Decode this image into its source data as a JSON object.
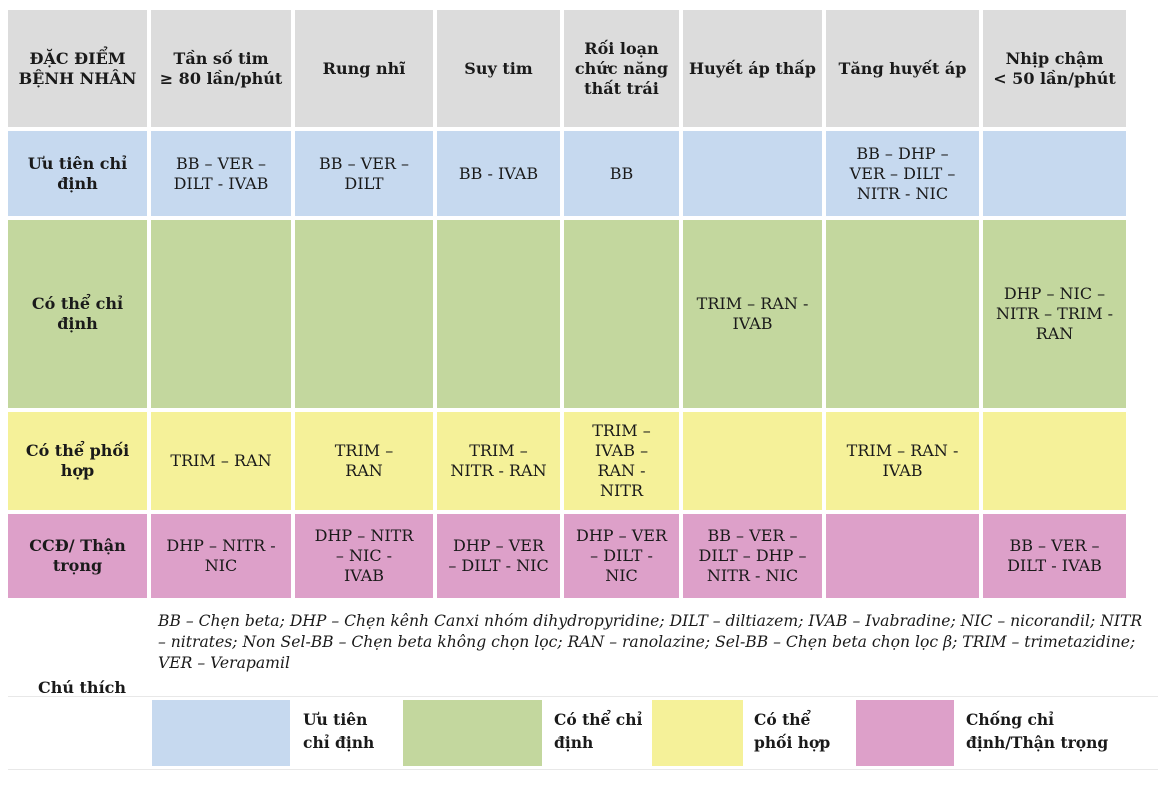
{
  "colors": {
    "header": "#dcdcdc",
    "priority": "#c6d9ef",
    "may_indicate": "#c3d79e",
    "may_combine": "#f5f199",
    "contraindicated": "#dda0c9"
  },
  "table": {
    "headers": [
      "ĐẶC ĐIỂM\nBỆNH NHÂN",
      "Tần số tim\n≥ 80 lần/phút",
      "Rung nhĩ",
      "Suy tim",
      "Rối loạn\nchức năng\nthất trái",
      "Huyết áp thấp",
      "Tăng huyết áp",
      "Nhịp chậm\n< 50 lần/phút"
    ],
    "rows": [
      {
        "label": "Ưu tiên chỉ\nđịnh",
        "cells": [
          "BB – VER –\nDILT - IVAB",
          "BB – VER –\nDILT",
          "BB - IVAB",
          "BB",
          "",
          "BB – DHP –\nVER – DILT –\nNITR - NIC",
          ""
        ]
      },
      {
        "label": "Có thể chỉ\nđịnh",
        "cells": [
          "",
          "",
          "",
          "",
          "TRIM – RAN -\nIVAB",
          "",
          "DHP – NIC –\nNITR – TRIM -\nRAN"
        ]
      },
      {
        "label": "Có thể phối\nhợp",
        "cells": [
          "TRIM – RAN",
          "TRIM –\nRAN",
          "TRIM –\nNITR - RAN",
          "TRIM –\nIVAB –\nRAN -\nNITR",
          "",
          "TRIM – RAN -\nIVAB",
          ""
        ]
      },
      {
        "label": "CCĐ/ Thận\ntrọng",
        "cells": [
          "DHP – NITR -\nNIC",
          "DHP – NITR\n– NIC -\nIVAB",
          "DHP – VER\n– DILT - NIC",
          "DHP – VER\n– DILT -\nNIC",
          "BB – VER –\nDILT – DHP –\nNITR - NIC",
          "",
          "BB – VER –\nDILT - IVAB"
        ]
      }
    ]
  },
  "notes": {
    "label": "Chú thích",
    "text": "BB – Chẹn beta; DHP – Chẹn kênh Canxi nhóm dihydropyridine; DILT – diltiazem; IVAB – Ivabradine; NIC – nicorandil; NITR – nitrates; Non Sel-BB – Chẹn beta không chọn lọc; RAN – ranolazine; Sel-BB – Chẹn beta chọn lọc β; TRIM – trimetazidine; VER – Verapamil"
  },
  "legend": [
    {
      "label": "Ưu tiên\nchỉ định"
    },
    {
      "label": "Có thể chỉ\nđịnh"
    },
    {
      "label": "Có thể\nphối hợp"
    },
    {
      "label": "Chống chỉ\nđịnh/Thận trọng"
    }
  ]
}
